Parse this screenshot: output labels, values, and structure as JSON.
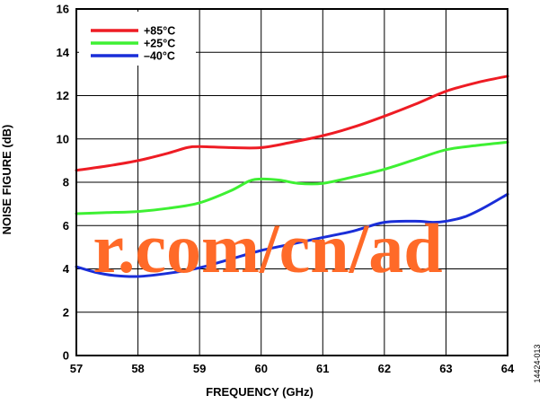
{
  "chart_data": {
    "type": "line",
    "xlabel": "FREQUENCY (GHz)",
    "ylabel": "NOISE FIGURE (dB)",
    "xlim": [
      57,
      64
    ],
    "ylim": [
      0,
      16
    ],
    "xticks": [
      57,
      58,
      59,
      60,
      61,
      62,
      63,
      64
    ],
    "yticks": [
      0,
      2,
      4,
      6,
      8,
      10,
      12,
      14,
      16
    ],
    "grid": true,
    "legend_position": "top-left",
    "series": [
      {
        "name": "+85°C",
        "color": "#ee1c24",
        "x": [
          57,
          57.5,
          58,
          58.5,
          58.8,
          59,
          59.5,
          60,
          60.5,
          61,
          61.5,
          62,
          62.5,
          63,
          63.5,
          64
        ],
        "y": [
          8.55,
          8.75,
          9.0,
          9.35,
          9.6,
          9.65,
          9.6,
          9.6,
          9.85,
          10.15,
          10.55,
          11.05,
          11.6,
          12.2,
          12.6,
          12.9
        ]
      },
      {
        "name": "+25°C",
        "color": "#3ef033",
        "x": [
          57,
          57.5,
          58,
          58.5,
          59,
          59.5,
          59.8,
          60,
          60.3,
          60.6,
          61,
          61.5,
          62,
          62.5,
          63,
          63.5,
          64
        ],
        "y": [
          6.55,
          6.6,
          6.65,
          6.8,
          7.05,
          7.6,
          8.05,
          8.15,
          8.1,
          7.95,
          7.95,
          8.25,
          8.6,
          9.05,
          9.5,
          9.7,
          9.85
        ]
      },
      {
        "name": "–40°C",
        "color": "#1a2ed8",
        "x": [
          57,
          57.3,
          57.6,
          58,
          58.5,
          59,
          59.5,
          60,
          60.5,
          61,
          61.5,
          62,
          62.5,
          62.8,
          63,
          63.3,
          63.6,
          64
        ],
        "y": [
          4.1,
          3.85,
          3.7,
          3.65,
          3.8,
          4.05,
          4.45,
          4.85,
          5.15,
          5.45,
          5.75,
          6.15,
          6.2,
          6.15,
          6.2,
          6.4,
          6.8,
          7.45
        ]
      }
    ]
  },
  "watermark": "r.com/cn/ad",
  "figure_id": "14424-013"
}
